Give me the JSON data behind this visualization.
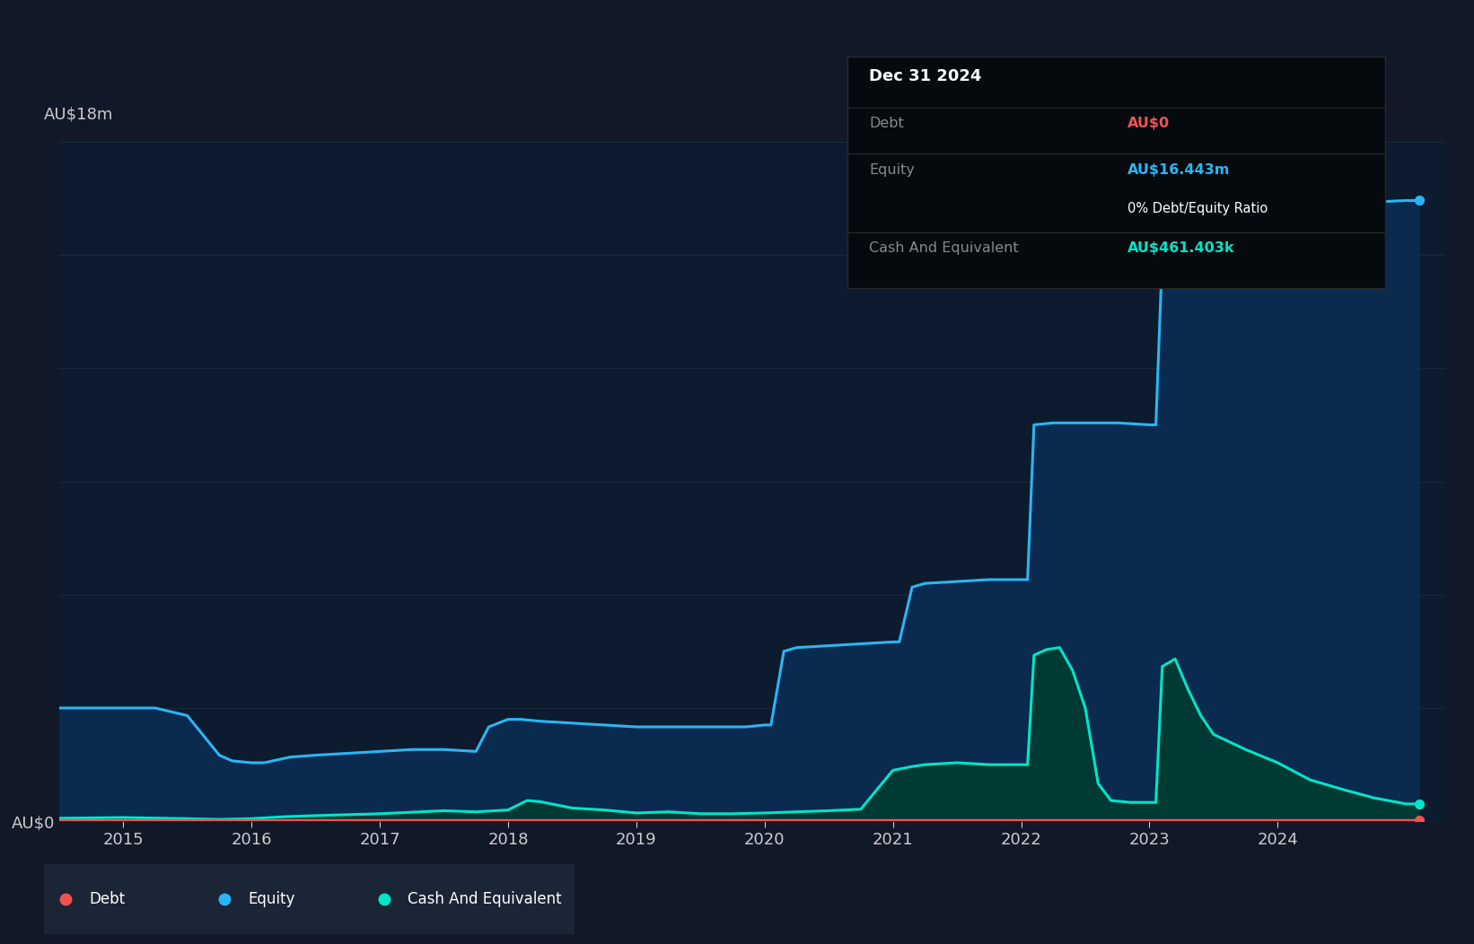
{
  "background_color": "#111827",
  "plot_bg_color": "#0d1b2e",
  "grid_color": "#1a2a3a",
  "ylabel_top": "AU$18m",
  "y0_label": "AU$0",
  "ylim": [
    0,
    18
  ],
  "xlim": [
    2014.5,
    2025.3
  ],
  "xticks": [
    2015,
    2016,
    2017,
    2018,
    2019,
    2020,
    2021,
    2022,
    2023,
    2024
  ],
  "equity_color": "#29b6f6",
  "equity_fill": "#0a2a50",
  "debt_color": "#ef5350",
  "cash_color": "#00e5c8",
  "cash_fill": "#003a35",
  "tooltip_bg": "#050a0f",
  "tooltip_border": "#2a2a2a",
  "tooltip_title": "Dec 31 2024",
  "tooltip_debt_label": "Debt",
  "tooltip_debt_value": "AU$0",
  "tooltip_debt_value_color": "#ef5350",
  "tooltip_equity_label": "Equity",
  "tooltip_equity_value": "AU$16.443m",
  "tooltip_equity_value_color": "#29b6f6",
  "tooltip_ratio_label": "0% Debt/Equity Ratio",
  "tooltip_cash_label": "Cash And Equivalent",
  "tooltip_cash_value": "AU$461.403k",
  "tooltip_cash_value_color": "#00e5c8",
  "legend_bg": "#1a2535",
  "equity_data": [
    [
      2014.5,
      3.0
    ],
    [
      2015.0,
      3.0
    ],
    [
      2015.25,
      3.0
    ],
    [
      2015.5,
      2.8
    ],
    [
      2015.75,
      1.75
    ],
    [
      2015.85,
      1.6
    ],
    [
      2016.0,
      1.55
    ],
    [
      2016.1,
      1.55
    ],
    [
      2016.3,
      1.7
    ],
    [
      2016.5,
      1.75
    ],
    [
      2016.75,
      1.8
    ],
    [
      2017.0,
      1.85
    ],
    [
      2017.25,
      1.9
    ],
    [
      2017.5,
      1.9
    ],
    [
      2017.75,
      1.85
    ],
    [
      2017.85,
      2.5
    ],
    [
      2018.0,
      2.7
    ],
    [
      2018.1,
      2.7
    ],
    [
      2018.25,
      2.65
    ],
    [
      2018.5,
      2.6
    ],
    [
      2018.75,
      2.55
    ],
    [
      2019.0,
      2.5
    ],
    [
      2019.25,
      2.5
    ],
    [
      2019.5,
      2.5
    ],
    [
      2019.75,
      2.5
    ],
    [
      2019.85,
      2.5
    ],
    [
      2020.0,
      2.55
    ],
    [
      2020.05,
      2.55
    ],
    [
      2020.15,
      4.5
    ],
    [
      2020.25,
      4.6
    ],
    [
      2020.5,
      4.65
    ],
    [
      2020.75,
      4.7
    ],
    [
      2021.0,
      4.75
    ],
    [
      2021.05,
      4.75
    ],
    [
      2021.15,
      6.2
    ],
    [
      2021.25,
      6.3
    ],
    [
      2021.5,
      6.35
    ],
    [
      2021.75,
      6.4
    ],
    [
      2022.0,
      6.4
    ],
    [
      2022.05,
      6.4
    ],
    [
      2022.1,
      10.5
    ],
    [
      2022.25,
      10.55
    ],
    [
      2022.5,
      10.55
    ],
    [
      2022.75,
      10.55
    ],
    [
      2023.0,
      10.5
    ],
    [
      2023.05,
      10.5
    ],
    [
      2023.1,
      15.0
    ],
    [
      2023.25,
      15.1
    ],
    [
      2023.5,
      15.1
    ],
    [
      2023.75,
      15.1
    ],
    [
      2024.0,
      15.1
    ],
    [
      2024.05,
      15.1
    ],
    [
      2024.25,
      16.2
    ],
    [
      2024.5,
      16.35
    ],
    [
      2024.75,
      16.4
    ],
    [
      2025.0,
      16.44
    ],
    [
      2025.1,
      16.44
    ]
  ],
  "cash_data": [
    [
      2014.5,
      0.08
    ],
    [
      2015.0,
      0.1
    ],
    [
      2015.5,
      0.07
    ],
    [
      2015.75,
      0.05
    ],
    [
      2016.0,
      0.07
    ],
    [
      2016.25,
      0.12
    ],
    [
      2016.5,
      0.15
    ],
    [
      2017.0,
      0.2
    ],
    [
      2017.5,
      0.28
    ],
    [
      2017.75,
      0.25
    ],
    [
      2018.0,
      0.3
    ],
    [
      2018.15,
      0.55
    ],
    [
      2018.25,
      0.52
    ],
    [
      2018.5,
      0.35
    ],
    [
      2018.75,
      0.3
    ],
    [
      2019.0,
      0.22
    ],
    [
      2019.25,
      0.25
    ],
    [
      2019.5,
      0.2
    ],
    [
      2019.75,
      0.2
    ],
    [
      2020.0,
      0.22
    ],
    [
      2020.25,
      0.25
    ],
    [
      2020.5,
      0.28
    ],
    [
      2020.75,
      0.32
    ],
    [
      2021.0,
      1.35
    ],
    [
      2021.15,
      1.45
    ],
    [
      2021.25,
      1.5
    ],
    [
      2021.5,
      1.55
    ],
    [
      2021.75,
      1.5
    ],
    [
      2022.0,
      1.5
    ],
    [
      2022.05,
      1.5
    ],
    [
      2022.1,
      4.4
    ],
    [
      2022.2,
      4.55
    ],
    [
      2022.3,
      4.6
    ],
    [
      2022.4,
      4.0
    ],
    [
      2022.5,
      3.0
    ],
    [
      2022.6,
      1.0
    ],
    [
      2022.7,
      0.55
    ],
    [
      2022.85,
      0.5
    ],
    [
      2023.0,
      0.5
    ],
    [
      2023.05,
      0.5
    ],
    [
      2023.1,
      4.1
    ],
    [
      2023.2,
      4.3
    ],
    [
      2023.3,
      3.5
    ],
    [
      2023.4,
      2.8
    ],
    [
      2023.5,
      2.3
    ],
    [
      2023.75,
      1.9
    ],
    [
      2024.0,
      1.55
    ],
    [
      2024.25,
      1.1
    ],
    [
      2024.5,
      0.85
    ],
    [
      2024.75,
      0.62
    ],
    [
      2025.0,
      0.46
    ],
    [
      2025.1,
      0.46
    ]
  ],
  "debt_data": [
    [
      2014.5,
      0.02
    ],
    [
      2025.1,
      0.02
    ]
  ]
}
